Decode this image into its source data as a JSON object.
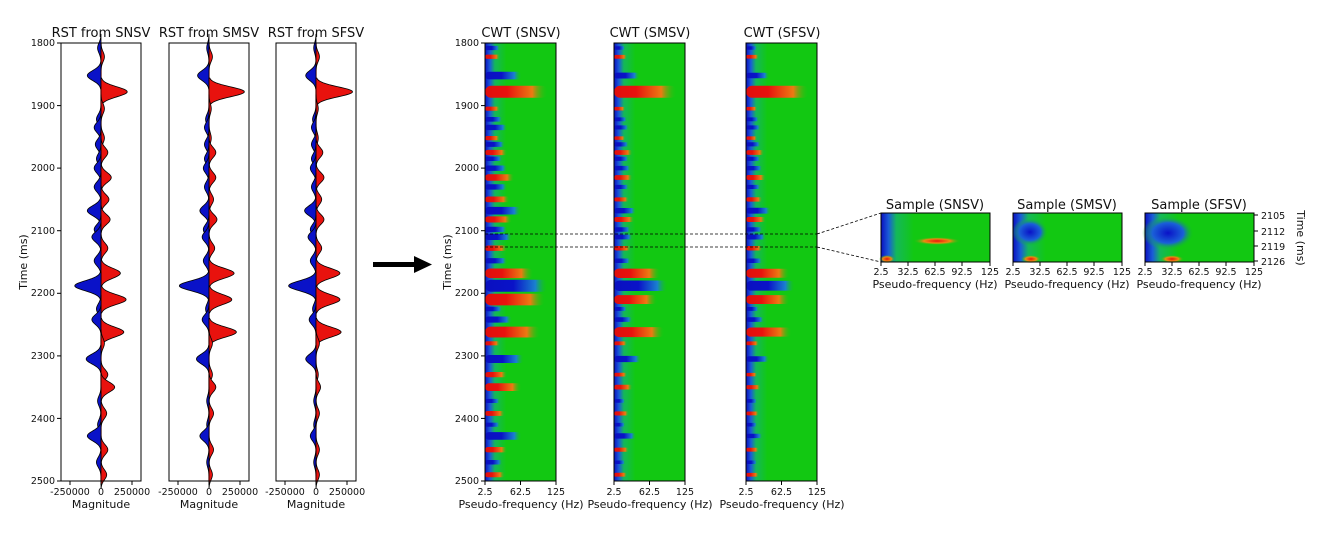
{
  "colors": {
    "positive": "#e8120e",
    "negative": "#0a12c8",
    "background": "#12c812",
    "mid": "#1e6ee0",
    "axis": "#000000"
  },
  "trace_panels": [
    {
      "title": "RST from SNSV",
      "xlabel": "Magnitude",
      "xticks": [
        "-250000",
        "0",
        "250000"
      ]
    },
    {
      "title": "RST from SMSV",
      "xlabel": "Magnitude",
      "xticks": [
        "-250000",
        "0",
        "250000"
      ]
    },
    {
      "title": "RST from SFSV",
      "xlabel": "Magnitude",
      "xticks": [
        "-250000",
        "0",
        "250000"
      ]
    }
  ],
  "cwt_panels": [
    {
      "title": "CWT (SNSV)",
      "xlabel": "Pseudo-frequency (Hz)",
      "xticks": [
        "2.5",
        "62.5",
        "125"
      ]
    },
    {
      "title": "CWT (SMSV)",
      "xlabel": "Pseudo-frequency (Hz)",
      "xticks": [
        "2.5",
        "62.5",
        "125"
      ]
    },
    {
      "title": "CWT (SFSV)",
      "xlabel": "Pseudo-frequency (Hz)",
      "xticks": [
        "2.5",
        "62.5",
        "125"
      ]
    }
  ],
  "sample_panels": [
    {
      "title": "Sample (SNSV)",
      "xlabel": "Pseudo-frequency (Hz)",
      "xticks": [
        "2.5",
        "32.5",
        "62.5",
        "92.5",
        "125"
      ]
    },
    {
      "title": "Sample (SMSV)",
      "xlabel": "Pseudo-frequency (Hz)",
      "xticks": [
        "2.5",
        "32.5",
        "62.5",
        "92.5",
        "125"
      ]
    },
    {
      "title": "Sample (SFSV)",
      "xlabel": "Pseudo-frequency (Hz)",
      "xticks": [
        "2.5",
        "32.5",
        "62.5",
        "92.5",
        "125"
      ]
    }
  ],
  "time_axis": {
    "label": "Time (ms)",
    "ticks": [
      "1800",
      "1900",
      "2000",
      "2100",
      "2200",
      "2300",
      "2400",
      "2500"
    ]
  },
  "sample_time_axis": {
    "label": "Time (ms)",
    "ticks": [
      "2105",
      "2112",
      "2119",
      "2126"
    ]
  },
  "chart_data": [
    {
      "type": "area",
      "panels": [
        "RST from SNSV",
        "RST from SMSV",
        "RST from SFSV"
      ],
      "xlabel": "Magnitude",
      "ylabel": "Time (ms)",
      "xlim": [
        -350000,
        350000
      ],
      "ylim": [
        2500,
        1800
      ],
      "fill": "positive red, negative blue",
      "events_time_ms": [
        1808,
        1822,
        1852,
        1878,
        1905,
        1922,
        1935,
        1952,
        1962,
        1975,
        1985,
        2000,
        2015,
        2030,
        2050,
        2068,
        2082,
        2098,
        2110,
        2128,
        2148,
        2168,
        2188,
        2210,
        2225,
        2242,
        2262,
        2280,
        2305,
        2330,
        2350,
        2372,
        2392,
        2410,
        2428,
        2450,
        2470,
        2490
      ],
      "series": [
        {
          "name": "RST from SNSV",
          "values": [
            -30000,
            30000,
            -120000,
            230000,
            30000,
            -40000,
            -60000,
            30000,
            -50000,
            60000,
            -40000,
            -60000,
            90000,
            -60000,
            70000,
            -120000,
            80000,
            -60000,
            -80000,
            60000,
            -60000,
            170000,
            -230000,
            220000,
            -40000,
            -80000,
            200000,
            30000,
            -130000,
            60000,
            120000,
            -30000,
            50000,
            -30000,
            -120000,
            60000,
            -40000,
            50000
          ]
        },
        {
          "name": "RST from SMSV",
          "values": [
            -20000,
            30000,
            -100000,
            310000,
            20000,
            -30000,
            -40000,
            20000,
            -40000,
            60000,
            -40000,
            -50000,
            60000,
            -40000,
            40000,
            -80000,
            70000,
            -50000,
            -60000,
            50000,
            -50000,
            220000,
            -260000,
            200000,
            -30000,
            -60000,
            240000,
            30000,
            -110000,
            30000,
            60000,
            -20000,
            40000,
            -20000,
            -80000,
            40000,
            -20000,
            30000
          ]
        },
        {
          "name": "RST from SFSV",
          "values": [
            -20000,
            30000,
            -90000,
            320000,
            20000,
            -30000,
            -40000,
            20000,
            -40000,
            60000,
            -40000,
            -50000,
            70000,
            -40000,
            50000,
            -100000,
            70000,
            -50000,
            -70000,
            50000,
            -50000,
            210000,
            -240000,
            210000,
            -30000,
            -60000,
            220000,
            30000,
            -90000,
            20000,
            40000,
            -20000,
            30000,
            -20000,
            -50000,
            30000,
            -20000,
            30000
          ]
        }
      ]
    },
    {
      "type": "heatmap",
      "panels": [
        "CWT (SNSV)",
        "CWT (SMSV)",
        "CWT (SFSV)"
      ],
      "xlabel": "Pseudo-frequency (Hz)",
      "ylabel": "Time (ms)",
      "xlim": [
        2.5,
        125
      ],
      "ylim": [
        2500,
        1800
      ],
      "colormap": [
        "blue",
        "green",
        "red"
      ]
    },
    {
      "type": "heatmap",
      "panels": [
        "Sample (SNSV)",
        "Sample (SMSV)",
        "Sample (SFSV)"
      ],
      "xlabel": "Pseudo-frequency (Hz)",
      "ylabel": "Time (ms)",
      "xlim": [
        2.5,
        125
      ],
      "ylim": [
        2126,
        2105
      ],
      "highlight": [
        {
          "panel": "Sample (SNSV)",
          "color": "red",
          "freq_hz": 62.5,
          "time_ms": 2116
        },
        {
          "panel": "Sample (SMSV)",
          "color": "red",
          "freq_hz": 25,
          "time_ms": 2124
        },
        {
          "panel": "Sample (SFSV)",
          "color": "red",
          "freq_hz": 30,
          "time_ms": 2124
        }
      ]
    }
  ]
}
